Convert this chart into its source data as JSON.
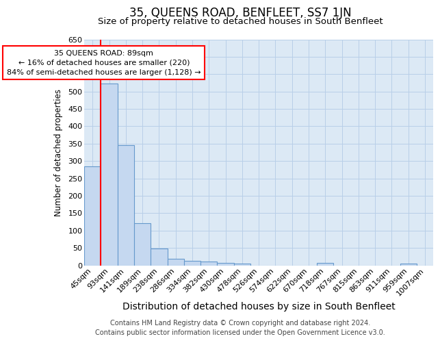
{
  "title": "35, QUEENS ROAD, BENFLEET, SS7 1JN",
  "subtitle": "Size of property relative to detached houses in South Benfleet",
  "xlabel": "Distribution of detached houses by size in South Benfleet",
  "ylabel": "Number of detached properties",
  "categories": [
    "45sqm",
    "93sqm",
    "141sqm",
    "189sqm",
    "238sqm",
    "286sqm",
    "334sqm",
    "382sqm",
    "430sqm",
    "478sqm",
    "526sqm",
    "574sqm",
    "622sqm",
    "670sqm",
    "718sqm",
    "767sqm",
    "815sqm",
    "863sqm",
    "911sqm",
    "959sqm",
    "1007sqm"
  ],
  "values": [
    284,
    522,
    345,
    121,
    48,
    18,
    12,
    10,
    7,
    5,
    0,
    0,
    0,
    0,
    6,
    0,
    0,
    0,
    0,
    5,
    0
  ],
  "bar_color": "#c5d8f0",
  "bar_edge_color": "#6699cc",
  "annotation_box_text": "35 QUEENS ROAD: 89sqm\n← 16% of detached houses are smaller (220)\n84% of semi-detached houses are larger (1,128) →",
  "annotation_box_color": "white",
  "annotation_box_edge_color": "red",
  "vline_color": "red",
  "vline_x": 0.5,
  "ylim": [
    0,
    650
  ],
  "yticks": [
    0,
    50,
    100,
    150,
    200,
    250,
    300,
    350,
    400,
    450,
    500,
    550,
    600,
    650
  ],
  "footer_line1": "Contains HM Land Registry data © Crown copyright and database right 2024.",
  "footer_line2": "Contains public sector information licensed under the Open Government Licence v3.0.",
  "background_color": "#ffffff",
  "plot_background_color": "#dce9f5",
  "grid_color": "#b8cfe8",
  "title_fontsize": 12,
  "subtitle_fontsize": 9.5,
  "xlabel_fontsize": 10,
  "ylabel_fontsize": 8.5,
  "tick_fontsize": 8,
  "footer_fontsize": 7,
  "annot_fontsize": 8
}
